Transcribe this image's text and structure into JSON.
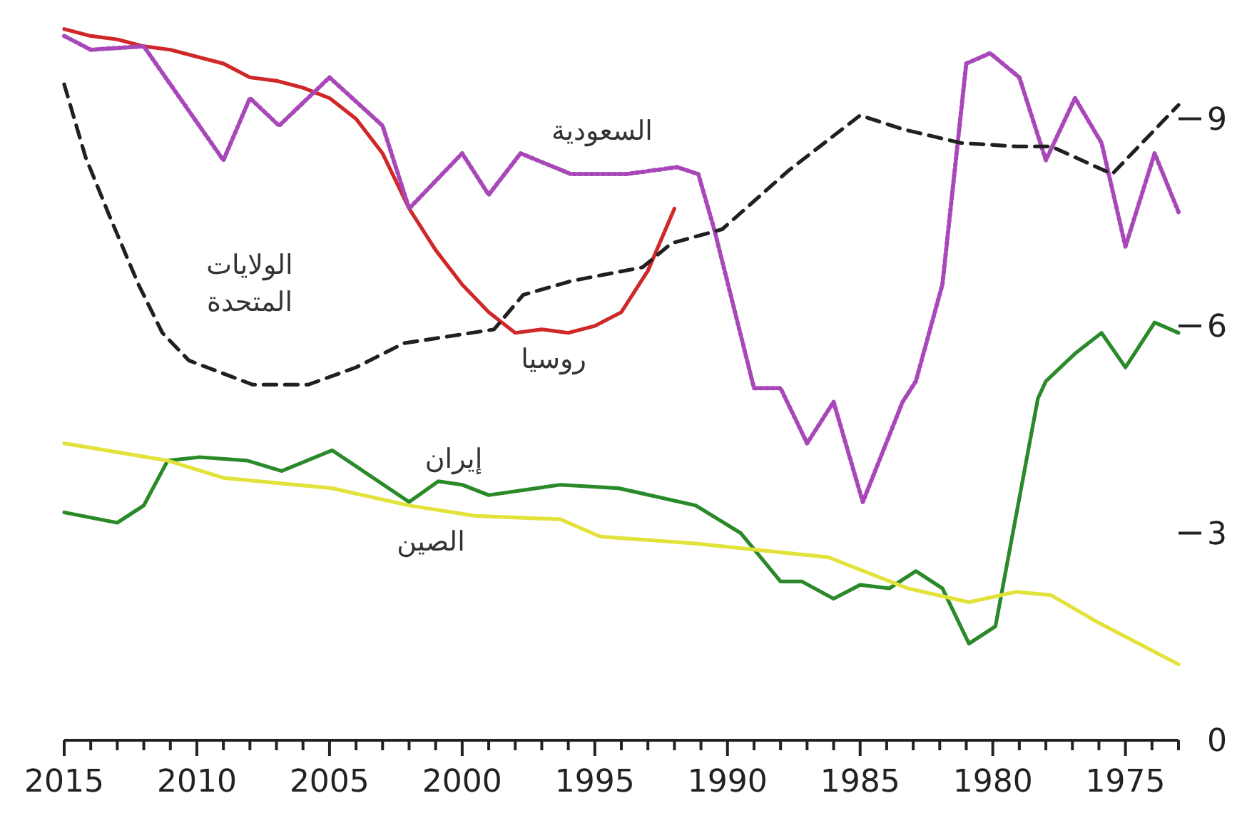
{
  "chart_data": {
    "type": "line",
    "xlim": [
      2015,
      1973
    ],
    "xticks": [
      2015,
      {
        "value": 2014,
        "label": null
      },
      {
        "value": 2013,
        "label": null
      },
      {
        "value": 2012,
        "label": null
      },
      {
        "value": 2011,
        "label": null
      },
      2010,
      {
        "value": 2009,
        "label": null
      },
      {
        "value": 2008,
        "label": null
      },
      {
        "value": 2007,
        "label": null
      },
      {
        "value": 2006,
        "label": null
      },
      2005,
      {
        "value": 2004,
        "label": null
      },
      {
        "value": 2003,
        "label": null
      },
      {
        "value": 2002,
        "label": null
      },
      {
        "value": 2001,
        "label": null
      },
      2000,
      {
        "value": 1999,
        "label": null
      },
      {
        "value": 1998,
        "label": null
      },
      {
        "value": 1997,
        "label": null
      },
      {
        "value": 1996,
        "label": null
      },
      1995,
      {
        "value": 1994,
        "label": null
      },
      {
        "value": 1993,
        "label": null
      },
      {
        "value": 1992,
        "label": null
      },
      {
        "value": 1991,
        "label": null
      },
      1990,
      {
        "value": 1989,
        "label": null
      },
      {
        "value": 1988,
        "label": null
      },
      {
        "value": 1987,
        "label": null
      },
      {
        "value": 1986,
        "label": null
      },
      1985,
      {
        "value": 1984,
        "label": null
      },
      {
        "value": 1983,
        "label": null
      },
      {
        "value": 1982,
        "label": null
      },
      {
        "value": 1981,
        "label": null
      },
      1980,
      {
        "value": 1979,
        "label": null
      },
      {
        "value": 1978,
        "label": null
      },
      {
        "value": 1977,
        "label": null
      },
      {
        "value": 1976,
        "label": null
      },
      1975,
      {
        "value": 1974,
        "label": null
      },
      {
        "value": 1973,
        "label": null
      }
    ],
    "ylim": [
      0,
      10.7
    ],
    "yticks": [
      0,
      3,
      6,
      9
    ],
    "grid": false,
    "series": [
      {
        "name": "روسيا",
        "color": "#d02828",
        "line_style": "solid",
        "x": [
          2015,
          2014,
          2013,
          2012,
          2011,
          2010,
          2009,
          2008,
          2007,
          2006,
          2005,
          2004,
          2003,
          2002,
          2001,
          2000,
          1999,
          1998,
          1997,
          1996,
          1995,
          1994,
          1993,
          1992
        ],
        "values": [
          10.3,
          10.2,
          10.15,
          10.05,
          10.0,
          9.9,
          9.8,
          9.6,
          9.55,
          9.45,
          9.3,
          9.0,
          8.5,
          7.7,
          7.1,
          6.6,
          6.2,
          5.9,
          5.95,
          5.9,
          6.0,
          6.2,
          6.8,
          7.7
        ]
      },
      {
        "name": "السعودية",
        "color": "#a848b8",
        "line_style": "dotted",
        "x": [
          2015,
          2014,
          2012,
          2009,
          2008,
          2006.9,
          2005,
          2003,
          2002,
          2000,
          1999,
          1997.8,
          1995.9,
          1993.8,
          1991.9,
          1991.1,
          1990.5,
          1989,
          1988,
          1987,
          1986,
          1984.9,
          1983.4,
          1982.9,
          1981.9,
          1981,
          1980.1,
          1979,
          1978,
          1976.9,
          1975.9,
          1975,
          1973.9,
          1973
        ],
        "values": [
          10.2,
          10.0,
          10.05,
          8.4,
          9.3,
          8.9,
          9.6,
          8.9,
          7.7,
          8.5,
          7.9,
          8.5,
          8.2,
          8.2,
          8.3,
          8.2,
          7.4,
          5.1,
          5.1,
          4.3,
          4.9,
          3.45,
          4.9,
          5.2,
          6.6,
          9.8,
          9.95,
          9.6,
          8.4,
          9.3,
          8.65,
          7.15,
          8.5,
          7.65
        ]
      },
      {
        "name": "الولايات المتحدة",
        "color": "#202020",
        "line_style": "dashed",
        "x": [
          2015,
          2014.2,
          2013.3,
          2012.2,
          2011.3,
          2010.3,
          2007.9,
          2005.8,
          2004,
          2002.2,
          1998.8,
          1997.7,
          1995.9,
          1993.2,
          1992.1,
          1990.2,
          1987.7,
          1985,
          1983.4,
          1981.2,
          1979.1,
          1977.8,
          1975.5,
          1973
        ],
        "values": [
          9.5,
          8.45,
          7.6,
          6.6,
          5.9,
          5.5,
          5.15,
          5.15,
          5.4,
          5.75,
          5.95,
          6.45,
          6.65,
          6.85,
          7.2,
          7.4,
          8.25,
          9.05,
          8.85,
          8.65,
          8.6,
          8.6,
          8.2,
          9.2
        ]
      },
      {
        "name": "إيران",
        "color": "#2a8a2a",
        "line_style": "solid",
        "x": [
          2015,
          2013,
          2012,
          2011.1,
          2009.9,
          2008.1,
          2006.8,
          2004.9,
          2002,
          2000.9,
          2000,
          1999,
          1996.3,
          1994.1,
          1991.2,
          1989.5,
          1988,
          1987.2,
          1986,
          1985,
          1983.9,
          1982.9,
          1981.9,
          1980.9,
          1979.9,
          1978.3,
          1978,
          1976.9,
          1975.9,
          1975,
          1973.9,
          1973
        ],
        "values": [
          3.3,
          3.15,
          3.4,
          4.05,
          4.1,
          4.05,
          3.9,
          4.2,
          3.45,
          3.75,
          3.7,
          3.55,
          3.7,
          3.65,
          3.4,
          3.0,
          2.3,
          2.3,
          2.05,
          2.25,
          2.2,
          2.45,
          2.2,
          1.4,
          1.65,
          4.95,
          5.2,
          5.6,
          5.9,
          5.4,
          6.05,
          5.9
        ]
      },
      {
        "name": "الصين",
        "color": "#e2e23a",
        "line_style": "solid",
        "x": [
          2015,
          2011.1,
          2009,
          2004.9,
          2002,
          1999.5,
          1996.3,
          1994.8,
          1991.2,
          1986.2,
          1983.2,
          1980.9,
          1979.1,
          1977.8,
          1976,
          1973
        ],
        "values": [
          4.3,
          4.05,
          3.8,
          3.65,
          3.4,
          3.25,
          3.2,
          2.95,
          2.85,
          2.65,
          2.2,
          2.0,
          2.15,
          2.1,
          1.7,
          1.1
        ]
      }
    ]
  }
}
